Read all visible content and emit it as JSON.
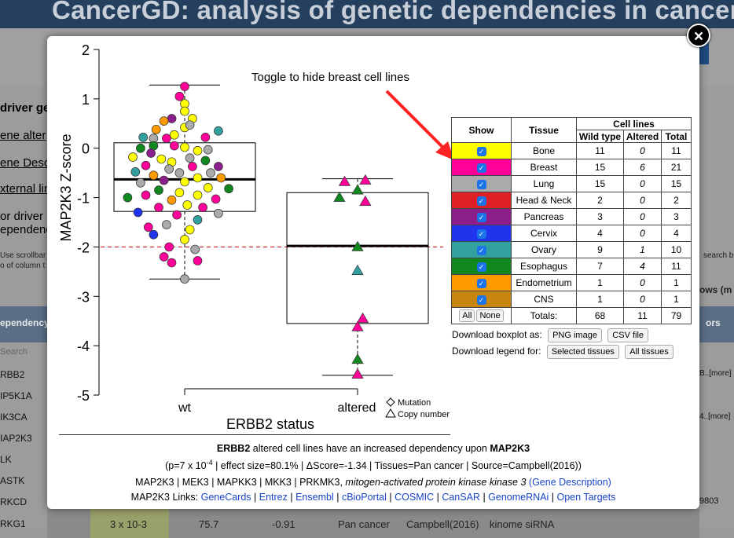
{
  "background": {
    "header_title": "CancerGD: analysis of genetic dependencies in cancer",
    "left_links": [
      "driver gen",
      "ene alter",
      "ene Desc",
      "xternal lin",
      "or driver",
      "ependenc"
    ],
    "scroll_hint": "Use scrollbar",
    "scroll_hint2": "o of column t",
    "right_hint": "search b",
    "rows_label": "ows (m",
    "table_header": "ependency",
    "right_header": "ors",
    "search_placeholder": "Search",
    "row_genes": [
      "RBB2",
      "IP5K1A",
      "IK3CA",
      "IAP2K3",
      "LK",
      "ASTK",
      "RKCD",
      "RKG1"
    ],
    "right_more": [
      "B..[more]",
      "4..[more]",
      "9803"
    ],
    "bottom_row": {
      "pvalue": "3 x 10-3",
      "effect": "75.7",
      "delta": "-0.91",
      "tissue": "Pan cancer",
      "source": "Campbell(2016)",
      "method": "kinome siRNA"
    }
  },
  "modal": {
    "close_label": "×",
    "annotation": "Toggle to hide breast cell lines",
    "legend": {
      "headers": {
        "show": "Show",
        "tissue": "Tissue",
        "cell_lines": "Cell lines",
        "wild_type": "Wild type",
        "altered": "Altered",
        "total": "Total"
      },
      "rows": [
        {
          "tissue": "Bone",
          "color": "#ffff00",
          "wt": "11",
          "alt": "0",
          "total": "11"
        },
        {
          "tissue": "Breast",
          "color": "#ff0099",
          "wt": "15",
          "alt": "6",
          "total": "21"
        },
        {
          "tissue": "Lung",
          "color": "#aaaaaa",
          "wt": "15",
          "alt": "0",
          "total": "15"
        },
        {
          "tissue": "Head & Neck",
          "color": "#dd1f26",
          "wt": "2",
          "alt": "0",
          "total": "2"
        },
        {
          "tissue": "Pancreas",
          "color": "#8c1e8c",
          "wt": "3",
          "alt": "0",
          "total": "3"
        },
        {
          "tissue": "Cervix",
          "color": "#2233ee",
          "wt": "4",
          "alt": "0",
          "total": "4"
        },
        {
          "tissue": "Ovary",
          "color": "#33a0a0",
          "wt": "9",
          "alt": "1",
          "total": "10"
        },
        {
          "tissue": "Esophagus",
          "color": "#11881f",
          "wt": "7",
          "alt": "4",
          "total": "11"
        },
        {
          "tissue": "Endometrium",
          "color": "#ff9900",
          "wt": "1",
          "alt": "0",
          "total": "1"
        },
        {
          "tissue": "CNS",
          "color": "#c8860e",
          "wt": "1",
          "alt": "0",
          "total": "1"
        }
      ],
      "all_label": "All",
      "none_label": "None",
      "totals_label": "Totals:",
      "totals": {
        "wt": "68",
        "alt": "11",
        "total": "79"
      }
    },
    "download_boxplot_label": "Download boxplot as:",
    "png_button": "PNG image",
    "csv_button": "CSV file",
    "download_legend_label": "Download legend for:",
    "selected_button": "Selected tissues",
    "all_button": "All tissues",
    "caption": {
      "gene_a": "ERBB2",
      "text1": " altered cell lines have an increased dependency upon ",
      "gene_b": "MAP2K3",
      "stats_pre": "(p=7 x 10",
      "stats_exp": "-4",
      "stats_post": " | effect size=80.1% | ΔScore=-1.34 | Tissues=Pan cancer | Source=Campbell(2016))",
      "synonyms": "MAP2K3 | MEK3 | MAPKK3 | MKK3 | PRKMK3, ",
      "full_name": "mitogen-activated protein kinase kinase 3",
      "gene_desc_link": "(Gene Description)",
      "links_label": "MAP2K3 Links: ",
      "links": [
        "GeneCards",
        "Entrez",
        "Ensembl",
        "cBioPortal",
        "COSMIC",
        "CanSAR",
        "GenomeRNAi",
        "Open Targets"
      ]
    }
  },
  "chart_data": {
    "type": "scatter",
    "subtype": "boxplot with jittered points",
    "xlabel": "ERBB2 status",
    "ylabel": "MAP2K3 Z-score",
    "categories": [
      "wt",
      "altered"
    ],
    "ylim": [
      -5,
      2
    ],
    "yticks": [
      "2",
      "1",
      "0",
      "-1",
      "-2",
      "-3",
      "-4",
      "-5"
    ],
    "yticks_values": [
      2,
      1,
      0,
      -1,
      -2,
      -3,
      -4,
      -5
    ],
    "threshold_line": -2,
    "legend_markers": [
      "Mutation",
      "Copy number"
    ],
    "boxes": [
      {
        "category": "wt",
        "q1": -1.28,
        "median": -0.63,
        "q3": 0.11,
        "whisker_low": -2.65,
        "whisker_high": 1.28
      },
      {
        "category": "altered",
        "q1": -3.55,
        "median": -1.98,
        "q3": -0.9,
        "whisker_low": -4.6,
        "whisker_high": -0.62
      }
    ],
    "series": [
      {
        "name": "wt",
        "marker": "circle",
        "points": [
          [
            0.0,
            1.25,
            "#ff0099"
          ],
          [
            0.0,
            0.9,
            "#ffff00"
          ],
          [
            -0.02,
            1.05,
            "#ff0099"
          ],
          [
            0.0,
            0.75,
            "#ffff00"
          ],
          [
            0.03,
            0.6,
            "#ffff00"
          ],
          [
            -0.05,
            0.6,
            "#8c1e8c"
          ],
          [
            -0.08,
            0.55,
            "#ff9900"
          ],
          [
            -0.11,
            0.38,
            "#ff9900"
          ],
          [
            0.0,
            0.42,
            "#ffff00"
          ],
          [
            0.02,
            0.47,
            "#aaaaaa"
          ],
          [
            0.13,
            0.35,
            "#33a0a0"
          ],
          [
            -0.04,
            0.27,
            "#ffff00"
          ],
          [
            -0.16,
            0.22,
            "#33a0a0"
          ],
          [
            -0.12,
            0.2,
            "#aaaaaa"
          ],
          [
            -0.07,
            0.2,
            "#ff0099"
          ],
          [
            0.08,
            0.22,
            "#ff0099"
          ],
          [
            -0.04,
            0.05,
            "#ff0099"
          ],
          [
            0.0,
            0.02,
            "#ffff00"
          ],
          [
            -0.12,
            0.05,
            "#11881f"
          ],
          [
            -0.17,
            0.0,
            "#11881f"
          ],
          [
            0.05,
            -0.05,
            "#ffff00"
          ],
          [
            0.09,
            -0.03,
            "#aaaaaa"
          ],
          [
            -0.13,
            -0.1,
            "#8c1e8c"
          ],
          [
            -0.2,
            -0.18,
            "#ffff00"
          ],
          [
            -0.09,
            -0.22,
            "#ffff00"
          ],
          [
            0.02,
            -0.2,
            "#aaaaaa"
          ],
          [
            0.08,
            -0.25,
            "#11881f"
          ],
          [
            -0.05,
            -0.28,
            "#ffff00"
          ],
          [
            0.13,
            -0.37,
            "#8c1e8c"
          ],
          [
            -0.15,
            -0.35,
            "#ff0099"
          ],
          [
            -0.06,
            -0.42,
            "#aaaaaa"
          ],
          [
            0.03,
            -0.37,
            "#ff0099"
          ],
          [
            0.1,
            -0.5,
            "#aaaaaa"
          ],
          [
            -0.19,
            -0.48,
            "#33a0a0"
          ],
          [
            -0.02,
            -0.5,
            "#aaaaaa"
          ],
          [
            -0.12,
            -0.55,
            "#ff9900"
          ],
          [
            0.05,
            -0.6,
            "#ffff00"
          ],
          [
            0.14,
            -0.6,
            "#ff9900"
          ],
          [
            -0.08,
            -0.65,
            "#8c1e8c"
          ],
          [
            0.0,
            -0.68,
            "#ffff00"
          ],
          [
            -0.17,
            -0.7,
            "#aaaaaa"
          ],
          [
            0.09,
            -0.8,
            "#ffff00"
          ],
          [
            -0.1,
            -0.85,
            "#11881f"
          ],
          [
            0.17,
            -0.82,
            "#11881f"
          ],
          [
            -0.02,
            -0.9,
            "#ffff00"
          ],
          [
            0.05,
            -0.95,
            "#ffff00"
          ],
          [
            -0.15,
            -0.95,
            "#ff0099"
          ],
          [
            -0.22,
            -1.0,
            "#11881f"
          ],
          [
            0.12,
            -1.03,
            "#ff0099"
          ],
          [
            -0.05,
            -1.05,
            "#ff9900"
          ],
          [
            0.01,
            -1.15,
            "#ffff00"
          ],
          [
            -0.1,
            -1.2,
            "#ff0099"
          ],
          [
            0.07,
            -1.2,
            "#ff0099"
          ],
          [
            -0.18,
            -1.3,
            "#2233ee"
          ],
          [
            0.13,
            -1.32,
            "#aaaaaa"
          ],
          [
            -0.03,
            -1.35,
            "#ff0099"
          ],
          [
            0.05,
            -1.45,
            "#33a0a0"
          ],
          [
            -0.07,
            -1.55,
            "#aaaaaa"
          ],
          [
            -0.14,
            -1.6,
            "#ff0099"
          ],
          [
            0.02,
            -1.65,
            "#ffff00"
          ],
          [
            -0.12,
            -1.75,
            "#2233ee"
          ],
          [
            0.0,
            -1.85,
            "#ffff00"
          ],
          [
            -0.06,
            -2.0,
            "#ff0099"
          ],
          [
            0.04,
            -2.05,
            "#aaaaaa"
          ],
          [
            -0.08,
            -2.2,
            "#ff0099"
          ],
          [
            0.05,
            -2.28,
            "#ff0099"
          ],
          [
            -0.05,
            -2.32,
            "#ff0099"
          ],
          [
            0.0,
            -2.65,
            "#aaaaaa"
          ]
        ]
      },
      {
        "name": "altered",
        "marker": "triangle",
        "points": [
          [
            -0.05,
            -0.68,
            "#ff0099"
          ],
          [
            0.03,
            -0.65,
            "#ff0099"
          ],
          [
            0.0,
            -0.85,
            "#11881f"
          ],
          [
            -0.07,
            -1.0,
            "#11881f"
          ],
          [
            0.03,
            -1.08,
            "#ff0099"
          ],
          [
            0.0,
            -2.0,
            "#11881f"
          ],
          [
            0.0,
            -2.48,
            "#33a0a0"
          ],
          [
            0.02,
            -3.45,
            "#ff0099"
          ],
          [
            0.0,
            -3.62,
            "#ff0099"
          ],
          [
            0.0,
            -4.28,
            "#11881f"
          ],
          [
            0.0,
            -4.58,
            "#ff0099"
          ]
        ]
      }
    ]
  }
}
